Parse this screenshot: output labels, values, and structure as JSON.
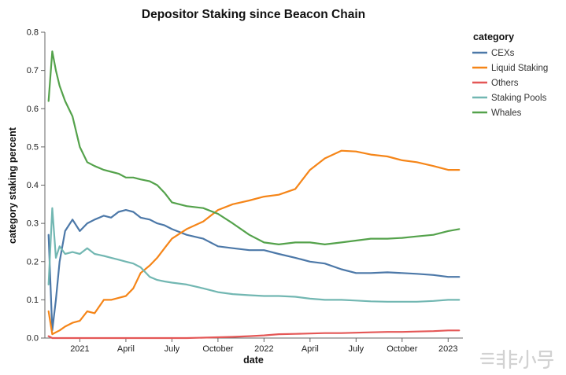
{
  "title": "Depositor Staking since Beacon Chain",
  "watermark": "非小号",
  "chart_data": {
    "type": "line",
    "title": "Depositor Staking since Beacon Chain",
    "xlabel": "date",
    "ylabel": "category staking percent",
    "legend_title": "category",
    "legend_position": "right",
    "grid": false,
    "ylim": [
      0,
      0.8
    ],
    "xlim": [
      2020.81,
      2023.08
    ],
    "y_ticks": [
      0,
      0.1,
      0.2,
      0.3,
      0.4,
      0.5,
      0.6,
      0.7,
      0.8
    ],
    "x_ticks": [
      {
        "value": 2021.0,
        "label": "2021"
      },
      {
        "value": 2021.25,
        "label": "April"
      },
      {
        "value": 2021.5,
        "label": "July"
      },
      {
        "value": 2021.75,
        "label": "October"
      },
      {
        "value": 2022.0,
        "label": "2022"
      },
      {
        "value": 2022.25,
        "label": "April"
      },
      {
        "value": 2022.5,
        "label": "July"
      },
      {
        "value": 2022.75,
        "label": "October"
      },
      {
        "value": 2023.0,
        "label": "2023"
      }
    ],
    "x": [
      2020.83,
      2020.85,
      2020.87,
      2020.89,
      2020.92,
      2020.96,
      2021.0,
      2021.04,
      2021.08,
      2021.13,
      2021.17,
      2021.21,
      2021.25,
      2021.29,
      2021.33,
      2021.38,
      2021.42,
      2021.46,
      2021.5,
      2021.58,
      2021.67,
      2021.75,
      2021.83,
      2021.92,
      2022.0,
      2022.08,
      2022.17,
      2022.25,
      2022.33,
      2022.42,
      2022.5,
      2022.58,
      2022.67,
      2022.75,
      2022.83,
      2022.92,
      2023.0,
      2023.06
    ],
    "series": [
      {
        "name": "CEXs",
        "color": "#4c78a8",
        "values": [
          0.27,
          0.02,
          0.1,
          0.2,
          0.28,
          0.31,
          0.28,
          0.3,
          0.31,
          0.32,
          0.315,
          0.33,
          0.335,
          0.33,
          0.315,
          0.31,
          0.3,
          0.295,
          0.285,
          0.27,
          0.26,
          0.24,
          0.235,
          0.23,
          0.23,
          0.22,
          0.21,
          0.2,
          0.195,
          0.18,
          0.17,
          0.17,
          0.172,
          0.17,
          0.168,
          0.165,
          0.16,
          0.16
        ]
      },
      {
        "name": "Liquid Staking",
        "color": "#f58518",
        "values": [
          0.07,
          0.01,
          0.015,
          0.02,
          0.03,
          0.04,
          0.045,
          0.07,
          0.065,
          0.1,
          0.1,
          0.105,
          0.11,
          0.13,
          0.17,
          0.19,
          0.21,
          0.235,
          0.26,
          0.285,
          0.305,
          0.335,
          0.35,
          0.36,
          0.37,
          0.375,
          0.39,
          0.44,
          0.47,
          0.49,
          0.488,
          0.48,
          0.475,
          0.465,
          0.46,
          0.45,
          0.44,
          0.44
        ]
      },
      {
        "name": "Others",
        "color": "#e45756",
        "values": [
          0.005,
          0,
          0,
          0,
          0,
          0,
          0,
          0,
          0,
          0,
          0,
          0,
          0,
          0,
          0,
          0,
          0,
          0,
          0,
          0,
          0.001,
          0.002,
          0.003,
          0.005,
          0.007,
          0.01,
          0.011,
          0.012,
          0.013,
          0.013,
          0.014,
          0.015,
          0.016,
          0.016,
          0.017,
          0.018,
          0.02,
          0.02
        ]
      },
      {
        "name": "Staking Pools",
        "color": "#72b7b2",
        "values": [
          0.14,
          0.34,
          0.21,
          0.24,
          0.22,
          0.225,
          0.22,
          0.235,
          0.22,
          0.215,
          0.21,
          0.205,
          0.2,
          0.195,
          0.185,
          0.16,
          0.152,
          0.148,
          0.145,
          0.14,
          0.13,
          0.12,
          0.115,
          0.112,
          0.11,
          0.11,
          0.108,
          0.103,
          0.1,
          0.1,
          0.098,
          0.096,
          0.095,
          0.095,
          0.095,
          0.097,
          0.1,
          0.1
        ]
      },
      {
        "name": "Whales",
        "color": "#54a24b",
        "values": [
          0.62,
          0.75,
          0.7,
          0.66,
          0.62,
          0.58,
          0.5,
          0.46,
          0.45,
          0.44,
          0.435,
          0.43,
          0.42,
          0.42,
          0.415,
          0.41,
          0.4,
          0.38,
          0.355,
          0.345,
          0.34,
          0.325,
          0.3,
          0.27,
          0.25,
          0.245,
          0.25,
          0.25,
          0.245,
          0.25,
          0.255,
          0.26,
          0.26,
          0.262,
          0.266,
          0.27,
          0.28,
          0.285
        ]
      }
    ]
  }
}
